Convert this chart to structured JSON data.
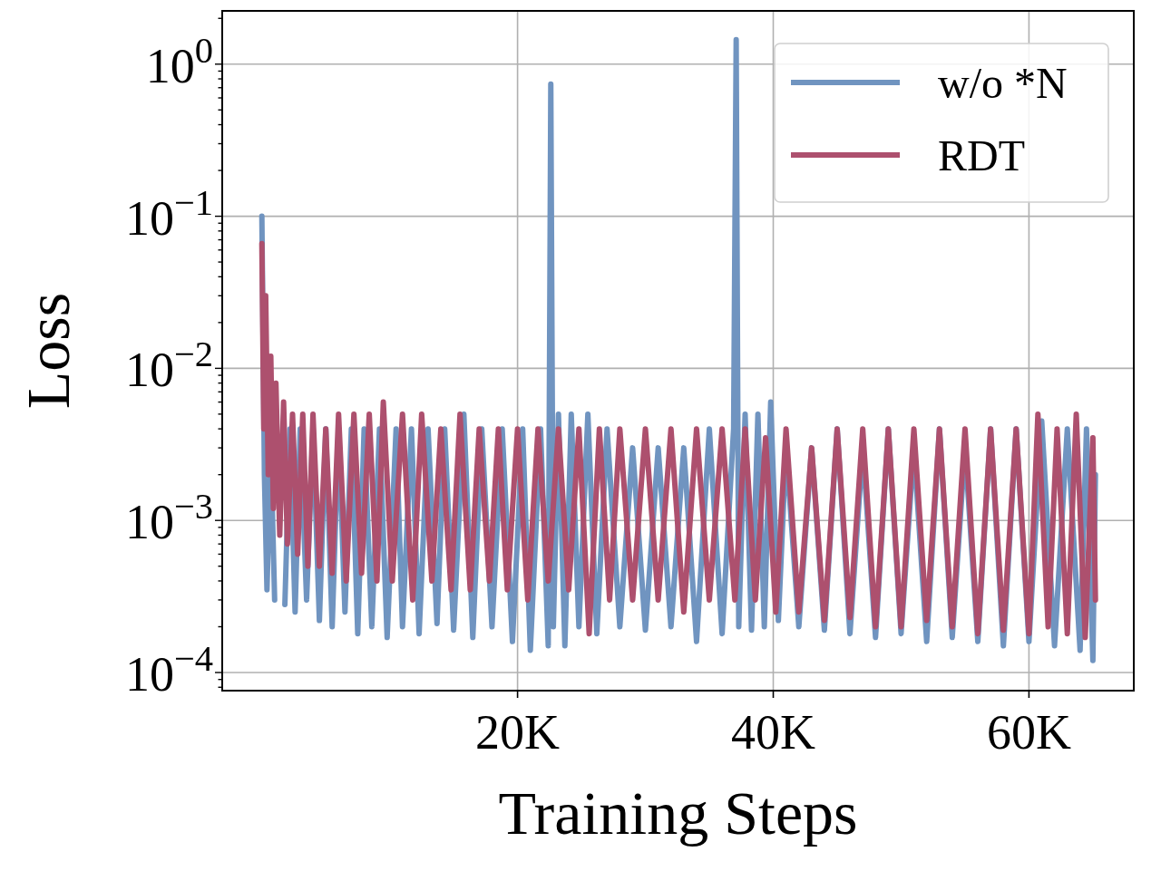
{
  "chart_data": {
    "type": "line",
    "xlabel": "Training Steps",
    "ylabel": "Loss",
    "log": "y",
    "grid": true,
    "legend": "top right",
    "line_style": "solid",
    "marker": "none",
    "xlim": [
      -3100,
      68200
    ],
    "xticks": [
      {
        "value": 20000,
        "label": "20K"
      },
      {
        "value": 40000,
        "label": "40K"
      },
      {
        "value": 60000,
        "label": "60K"
      }
    ],
    "ylim": [
      7.6e-05,
      2.24
    ],
    "yticks": [
      {
        "value": 0.0001,
        "label": "10$^{−4}$"
      },
      {
        "value": 0.001,
        "label": "10$^{−3}$"
      },
      {
        "value": 0.01,
        "label": "10$^{−2}$"
      },
      {
        "value": 0.1,
        "label": "10$^{−1}$"
      },
      {
        "value": 1,
        "label": "10$^{0}$"
      },
      {
        "value": 8e-05,
        "label": null
      },
      {
        "value": 9e-05,
        "label": null
      },
      {
        "value": 0.0002,
        "label": null
      },
      {
        "value": 0.0003,
        "label": null
      },
      {
        "value": 0.0004,
        "label": null
      },
      {
        "value": 0.0005,
        "label": null
      },
      {
        "value": 0.0006,
        "label": null
      },
      {
        "value": 0.0007,
        "label": null
      },
      {
        "value": 0.0008,
        "label": null
      },
      {
        "value": 0.0009,
        "label": null
      },
      {
        "value": 0.002,
        "label": null
      },
      {
        "value": 0.003,
        "label": null
      },
      {
        "value": 0.004,
        "label": null
      },
      {
        "value": 0.005,
        "label": null
      },
      {
        "value": 0.006,
        "label": null
      },
      {
        "value": 0.007,
        "label": null
      },
      {
        "value": 0.008,
        "label": null
      },
      {
        "value": 0.009,
        "label": null
      },
      {
        "value": 0.02,
        "label": null
      },
      {
        "value": 0.03,
        "label": null
      },
      {
        "value": 0.04,
        "label": null
      },
      {
        "value": 0.05,
        "label": null
      },
      {
        "value": 0.06,
        "label": null
      },
      {
        "value": 0.07,
        "label": null
      },
      {
        "value": 0.08,
        "label": null
      },
      {
        "value": 0.09,
        "label": null
      },
      {
        "value": 0.2,
        "label": null
      },
      {
        "value": 0.3,
        "label": null
      },
      {
        "value": 0.4,
        "label": null
      },
      {
        "value": 0.5,
        "label": null
      },
      {
        "value": 0.6,
        "label": null
      },
      {
        "value": 0.7,
        "label": null
      },
      {
        "value": 0.8,
        "label": null
      },
      {
        "value": 0.9,
        "label": null
      },
      {
        "value": 2,
        "label": null
      }
    ],
    "series": [
      {
        "name": "w/o *N",
        "color": "#7094c0",
        "x": [
          0,
          200,
          400,
          700,
          1000,
          1400,
          1800,
          2200,
          2600,
          3000,
          3500,
          4000,
          4500,
          5000,
          5500,
          6000,
          6500,
          7000,
          7500,
          8000,
          8600,
          9200,
          9800,
          10500,
          11000,
          11700,
          12300,
          13000,
          13700,
          14300,
          15000,
          15800,
          16500,
          17200,
          18000,
          18800,
          19600,
          20400,
          21000,
          21800,
          22400,
          22600,
          22800,
          23200,
          23700,
          24200,
          24800,
          25500,
          26200,
          27000,
          28000,
          29000,
          30000,
          31000,
          32000,
          33000,
          34000,
          35000,
          36000,
          36900,
          37100,
          37300,
          37800,
          38300,
          38800,
          39300,
          39800,
          40400,
          41000,
          42000,
          43000,
          44000,
          45000,
          46000,
          47000,
          48000,
          49000,
          50000,
          51000,
          52000,
          53000,
          54000,
          55000,
          56000,
          57000,
          58000,
          59000,
          60000,
          61000,
          62000,
          63000,
          64000,
          64500,
          65000,
          65200
        ],
        "values": [
          0.1,
          0.002,
          0.00035,
          0.003,
          0.0003,
          null,
          0.00028,
          0.004,
          0.00025,
          0.004,
          0.0003,
          0.004,
          0.00022,
          0.004,
          0.0002,
          0.004,
          0.00025,
          0.004,
          0.00018,
          0.004,
          0.0002,
          0.004,
          0.00017,
          0.004,
          0.0002,
          0.004,
          0.00018,
          0.004,
          0.00021,
          0.004,
          0.00019,
          0.005,
          0.00017,
          0.004,
          0.0002,
          0.004,
          0.00016,
          0.004,
          0.00014,
          0.004,
          0.00015,
          0.74,
          0.0002,
          0.005,
          0.00015,
          0.005,
          0.0002,
          0.005,
          0.00018,
          0.004,
          0.0002,
          0.003,
          0.00019,
          0.003,
          0.0002,
          0.003,
          0.00016,
          0.004,
          0.00018,
          0.004,
          1.45,
          0.0002,
          0.005,
          0.00019,
          0.005,
          0.0002,
          0.006,
          0.00022,
          0.003,
          0.0002,
          0.003,
          0.00019,
          0.004,
          0.00018,
          0.003,
          0.00017,
          0.004,
          0.00018,
          0.003,
          0.00016,
          0.004,
          0.00017,
          0.003,
          0.00016,
          0.004,
          0.00015,
          0.004,
          0.00016,
          0.0045,
          0.00015,
          0.004,
          0.00014,
          0.004,
          0.00012,
          0.002
        ]
      },
      {
        "name": "RDT",
        "color": "#ad506e",
        "x": [
          0,
          150,
          300,
          500,
          700,
          900,
          1100,
          1400,
          1700,
          2000,
          2400,
          2800,
          3200,
          3600,
          4000,
          4500,
          5000,
          5500,
          6000,
          6600,
          7200,
          7800,
          8400,
          9000,
          9500,
          10200,
          11000,
          11800,
          12500,
          13300,
          14000,
          14800,
          15500,
          16300,
          17000,
          17800,
          18500,
          19200,
          20000,
          20800,
          21600,
          22400,
          23200,
          24000,
          24800,
          25600,
          26400,
          27200,
          28000,
          29000,
          30000,
          31000,
          32000,
          33000,
          34000,
          35000,
          36000,
          37000,
          37800,
          38600,
          39400,
          40200,
          41000,
          42000,
          43000,
          44000,
          45000,
          46000,
          47000,
          48000,
          49000,
          50000,
          51000,
          52000,
          53000,
          54000,
          55000,
          56000,
          57000,
          58000,
          59000,
          60000,
          60700,
          61500,
          62200,
          63000,
          63700,
          64400,
          65000,
          65200
        ],
        "values": [
          0.066,
          0.004,
          0.03,
          0.002,
          0.012,
          0.0012,
          0.008,
          0.0008,
          0.006,
          0.0007,
          0.005,
          0.0006,
          0.005,
          0.0005,
          0.005,
          0.0005,
          0.004,
          0.00045,
          0.005,
          0.0004,
          0.005,
          0.00045,
          0.005,
          0.0004,
          0.006,
          0.0004,
          0.005,
          0.0003,
          0.005,
          0.0004,
          0.004,
          0.00035,
          0.005,
          0.00035,
          0.004,
          0.0004,
          0.004,
          0.00035,
          0.004,
          0.0003,
          0.004,
          0.0004,
          0.004,
          0.00035,
          0.004,
          0.00018,
          0.004,
          0.0003,
          0.004,
          0.0003,
          0.004,
          0.0003,
          0.004,
          0.00025,
          0.004,
          0.0003,
          0.004,
          0.0003,
          0.004,
          0.0003,
          0.0035,
          0.00025,
          0.004,
          0.00025,
          0.003,
          0.00022,
          0.004,
          0.00023,
          0.004,
          0.0002,
          0.004,
          0.0002,
          0.004,
          0.00022,
          0.004,
          0.0002,
          0.004,
          0.00018,
          0.004,
          0.00019,
          0.004,
          0.00018,
          0.005,
          0.0002,
          0.004,
          0.00018,
          0.005,
          0.00017,
          0.0035,
          0.0003
        ]
      }
    ]
  }
}
